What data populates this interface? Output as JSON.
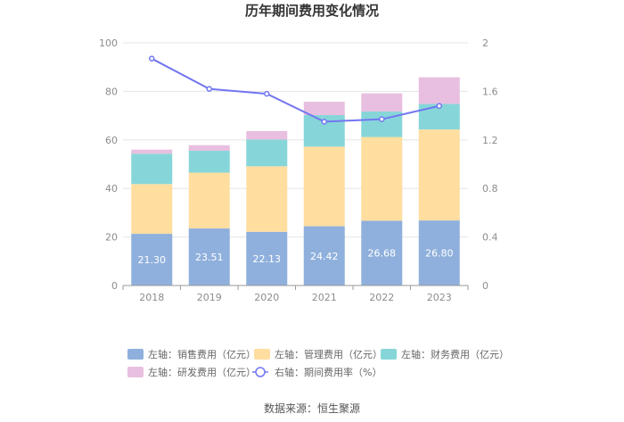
{
  "chart_data": {
    "type": "bar",
    "stacked": true,
    "title": "历年期间费用变化情况",
    "categories": [
      "2018",
      "2019",
      "2020",
      "2021",
      "2022",
      "2023"
    ],
    "left_axis": {
      "min": 0,
      "max": 100,
      "ticks": [
        "0",
        "20",
        "40",
        "60",
        "80",
        "100"
      ]
    },
    "right_axis": {
      "min": 0,
      "max": 2,
      "ticks": [
        "0",
        "0.4",
        "0.8",
        "1.2",
        "1.6",
        "2"
      ]
    },
    "series": [
      {
        "name": "左轴：销售费用（亿元）",
        "axis": "left",
        "color": "#8fb0dc",
        "values": [
          21.3,
          23.51,
          22.13,
          24.42,
          26.68,
          26.8
        ],
        "labels": [
          "21.30",
          "23.51",
          "22.13",
          "24.42",
          "26.68",
          "26.80"
        ]
      },
      {
        "name": "左轴：管理费用（亿元）",
        "axis": "left",
        "color": "#ffdea0",
        "values": [
          20.5,
          23.0,
          27.0,
          32.8,
          34.5,
          37.5
        ]
      },
      {
        "name": "左轴：财务费用（亿元）",
        "axis": "left",
        "color": "#86d6d9",
        "values": [
          12.5,
          9.0,
          11.0,
          13.0,
          10.5,
          10.5
        ]
      },
      {
        "name": "左轴：研发费用（亿元）",
        "axis": "left",
        "color": "#e8bfe0",
        "values": [
          1.7,
          2.3,
          3.5,
          5.5,
          7.5,
          11.0
        ]
      },
      {
        "name": "右轴：期间费用率（%）",
        "axis": "right",
        "type": "line",
        "color": "#7276f0",
        "values": [
          1.87,
          1.62,
          1.58,
          1.35,
          1.37,
          1.48
        ]
      }
    ]
  },
  "source": "数据来源：恒生聚源"
}
